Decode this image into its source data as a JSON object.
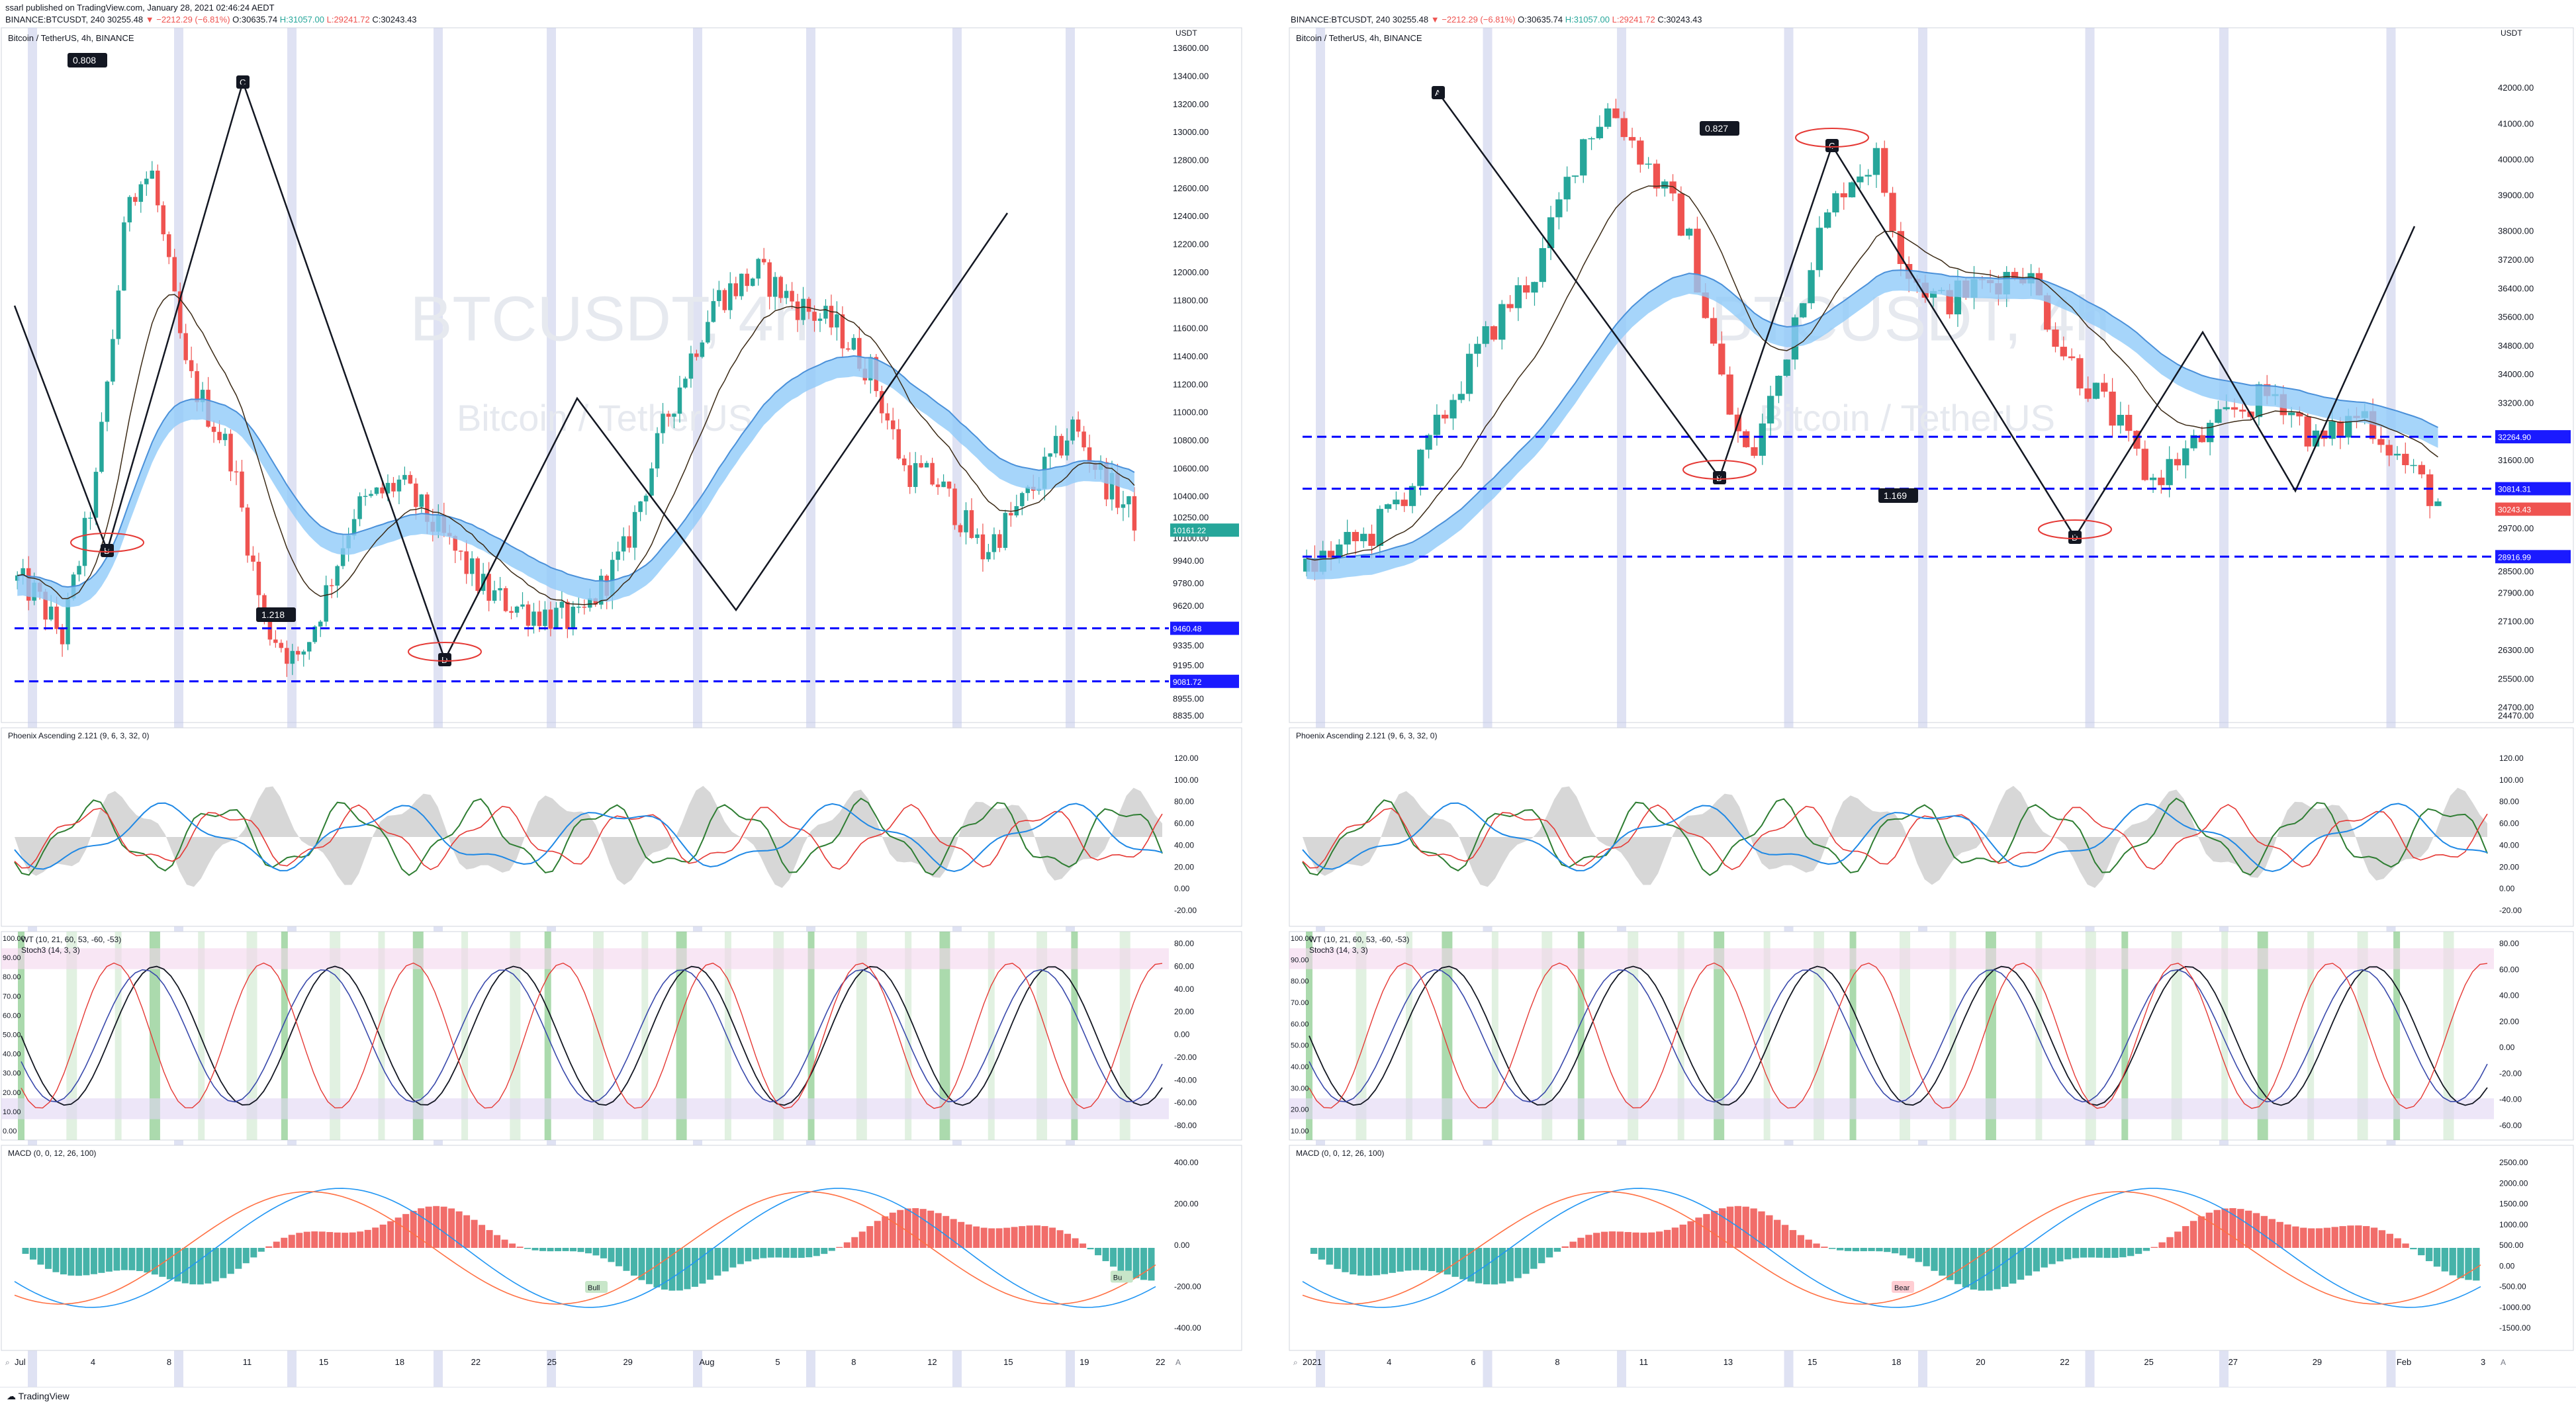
{
  "header": {
    "published": "ssarl published on TradingView.com, January 28, 2021 02:46:24 AEDT",
    "left": {
      "symbol": "BINANCE:BTCUSDT, 240",
      "price": "30255.48",
      "change": "▼ −2212.29 (−6.81%)",
      "o": "O:30635.74",
      "h": "H:31057.00",
      "l": "L:29241.72",
      "c": "C:30243.43"
    },
    "right": {
      "symbol": "BINANCE:BTCUSDT, 240",
      "price": "30255.48",
      "change": "▼ −2212.29 (−6.81%)",
      "o": "O:30635.74",
      "h": "H:31057.00",
      "l": "L:29241.72",
      "c": "C:30243.43"
    }
  },
  "footer": {
    "logo": "TradingView"
  },
  "colors": {
    "up": "#26a69a",
    "down": "#ef5350",
    "ema_blue": "#4a90d9",
    "ribbon_blue": "#90caf9",
    "ribbon_tan": "#f5deb3",
    "dashed_blue": "#0000ff",
    "annot_red": "#e53935",
    "highlight": "#c5cae9"
  },
  "chart_data": [
    {
      "id": "left",
      "type": "candlestick",
      "title": "Bitcoin / TetherUS, 4h, BINANCE",
      "watermark": "BTCUSDT, 4h",
      "watermark_sub": "Bitcoin / TetherUS",
      "currency": "USDT",
      "yticks": [
        "13600.00",
        "13400.00",
        "13200.00",
        "13000.00",
        "12800.00",
        "12600.00",
        "12400.00",
        "12200.00",
        "12000.00",
        "11800.00",
        "11600.00",
        "11400.00",
        "11200.00",
        "11000.00",
        "10800.00",
        "10600.00",
        "10400.00",
        "10250.00",
        "10100.00",
        "9940.00",
        "9780.00",
        "9620.00",
        "9460.00",
        "9335.00",
        "9195.00",
        "9081.72",
        "8955.00",
        "8835.00"
      ],
      "price_range": [
        8835,
        13700
      ],
      "price_labels": [
        {
          "value": 10161.22,
          "text": "10161.22",
          "color": "#26a69a"
        },
        {
          "value": 9460.48,
          "text": "9460.48",
          "color": "#1a1aff"
        },
        {
          "value": 9081.72,
          "text": "9081.72",
          "color": "#1a1aff"
        }
      ],
      "xticks": [
        "Jul",
        "4",
        "8",
        "11",
        "15",
        "18",
        "22",
        "25",
        "29",
        "Aug",
        "5",
        "8",
        "12",
        "15",
        "19",
        "22"
      ],
      "pattern_points": [
        {
          "label": "C"
        },
        {
          "label": "B"
        },
        {
          "label": "D"
        }
      ],
      "ratios": [
        "0.808",
        "1.218"
      ],
      "highlight_bands": 9,
      "candles": 200,
      "path": [
        [
          0,
          9800
        ],
        [
          8,
          9700
        ],
        [
          20,
          9400
        ],
        [
          35,
          10500
        ],
        [
          50,
          12600
        ],
        [
          60,
          12700
        ],
        [
          75,
          11300
        ],
        [
          95,
          10700
        ],
        [
          110,
          9500
        ],
        [
          125,
          9200
        ],
        [
          135,
          9600
        ],
        [
          150,
          10300
        ],
        [
          170,
          10500
        ],
        [
          190,
          10100
        ],
        [
          210,
          9700
        ],
        [
          225,
          9600
        ],
        [
          250,
          9500
        ],
        [
          270,
          10000
        ],
        [
          290,
          11000
        ],
        [
          310,
          11800
        ],
        [
          330,
          12000
        ],
        [
          345,
          11800
        ],
        [
          365,
          11600
        ],
        [
          380,
          11300
        ],
        [
          395,
          10600
        ],
        [
          410,
          10500
        ],
        [
          430,
          10000
        ],
        [
          450,
          10400
        ],
        [
          470,
          10900
        ],
        [
          485,
          10500
        ],
        [
          500,
          10200
        ]
      ]
    },
    {
      "id": "right",
      "type": "candlestick",
      "title": "Bitcoin / TetherUS, 4h, BINANCE",
      "watermark": "BTCUSDT, 4h",
      "watermark_sub": "Bitcoin / TetherUS",
      "currency": "USDT",
      "yticks": [
        "42000.00",
        "41000.00",
        "40000.00",
        "39000.00",
        "38000.00",
        "37200.00",
        "36400.00",
        "35600.00",
        "34800.00",
        "34000.00",
        "33200.00",
        "32264.90",
        "31600.00",
        "30814.31",
        "30243.43",
        "29700.00",
        "28916.99",
        "28500.00",
        "27900.00",
        "27100.00",
        "26300.00",
        "25500.00",
        "24700.00",
        "24470.00"
      ],
      "price_range": [
        24470,
        43500
      ],
      "price_labels": [
        {
          "value": 32264.9,
          "text": "32264.90",
          "color": "#1a1aff"
        },
        {
          "value": 30814.31,
          "text": "30814.31",
          "color": "#1a1aff"
        },
        {
          "value": 30243.43,
          "text": "30243.43",
          "color": "#ef5350"
        },
        {
          "value": 28916.99,
          "text": "28916.99",
          "color": "#1a1aff"
        }
      ],
      "xticks": [
        "2021",
        "4",
        "6",
        "8",
        "11",
        "13",
        "15",
        "18",
        "20",
        "22",
        "25",
        "27",
        "29",
        "Feb",
        "3"
      ],
      "pattern_points": [
        {
          "label": "A"
        },
        {
          "label": "C"
        },
        {
          "label": "B"
        },
        {
          "label": "D"
        }
      ],
      "ratios": [
        "0.827",
        "1.169"
      ],
      "highlight_bands": 8,
      "candles": 140,
      "path": [
        [
          0,
          28500
        ],
        [
          5,
          29000
        ],
        [
          15,
          29500
        ],
        [
          25,
          31000
        ],
        [
          35,
          33500
        ],
        [
          45,
          35500
        ],
        [
          55,
          37000
        ],
        [
          65,
          40500
        ],
        [
          72,
          41500
        ],
        [
          80,
          40000
        ],
        [
          90,
          38000
        ],
        [
          100,
          33000
        ],
        [
          105,
          31500
        ],
        [
          112,
          34000
        ],
        [
          120,
          37500
        ],
        [
          128,
          39500
        ],
        [
          135,
          40000
        ],
        [
          142,
          37000
        ],
        [
          150,
          36000
        ],
        [
          160,
          36500
        ],
        [
          170,
          37000
        ],
        [
          180,
          34500
        ],
        [
          190,
          33000
        ],
        [
          200,
          31000
        ],
        [
          210,
          32000
        ],
        [
          220,
          33000
        ],
        [
          230,
          33500
        ],
        [
          240,
          32000
        ],
        [
          250,
          33000
        ],
        [
          260,
          31500
        ],
        [
          270,
          30200
        ]
      ]
    }
  ],
  "indicators": {
    "left": {
      "phoenix": {
        "title": "Phoenix Ascending 2.121 (9, 6, 3, 32, 0)",
        "yticks": [
          "120.00",
          "100.00",
          "80.00",
          "60.00",
          "40.00",
          "20.00",
          "0.00",
          "-20.00"
        ]
      },
      "wt": {
        "title": "WT (10, 21, 60, 53, -60, -53)",
        "title2": "Stoch3 (14, 3, 3)",
        "yticks_left": [
          "100.00",
          "90.00",
          "80.00",
          "70.00",
          "60.00",
          "50.00",
          "40.00",
          "30.00",
          "20.00",
          "10.00",
          "0.00"
        ],
        "yticks_right": [
          "80.00",
          "60.00",
          "40.00",
          "20.00",
          "0.00",
          "-20.00",
          "-40.00",
          "-60.00",
          "-80.00"
        ]
      },
      "macd": {
        "title": "MACD (0, 0, 12, 26, 100)",
        "yticks": [
          "400.00",
          "200.00",
          "0.00",
          "-200.00",
          "-400.00"
        ],
        "labels": [
          "Bull",
          "Bu"
        ]
      }
    },
    "right": {
      "phoenix": {
        "title": "Phoenix Ascending 2.121 (9, 6, 3, 32, 0)",
        "yticks": [
          "120.00",
          "100.00",
          "80.00",
          "60.00",
          "40.00",
          "20.00",
          "0.00",
          "-20.00"
        ]
      },
      "wt": {
        "title": "WT (10, 21, 60, 53, -60, -53)",
        "title2": "Stoch3 (14, 3, 3)",
        "yticks_left": [
          "100.00",
          "90.00",
          "80.00",
          "70.00",
          "60.00",
          "50.00",
          "40.00",
          "30.00",
          "20.00",
          "10.00"
        ],
        "yticks_right": [
          "80.00",
          "60.00",
          "40.00",
          "20.00",
          "0.00",
          "-20.00",
          "-40.00",
          "-60.00"
        ]
      },
      "macd": {
        "title": "MACD (0, 0, 12, 26, 100)",
        "yticks": [
          "2500.00",
          "2000.00",
          "1500.00",
          "1000.00",
          "500.00",
          "0.00",
          "-500.00",
          "-1000.00",
          "-1500.00"
        ],
        "labels": [
          "Bear"
        ]
      }
    }
  }
}
